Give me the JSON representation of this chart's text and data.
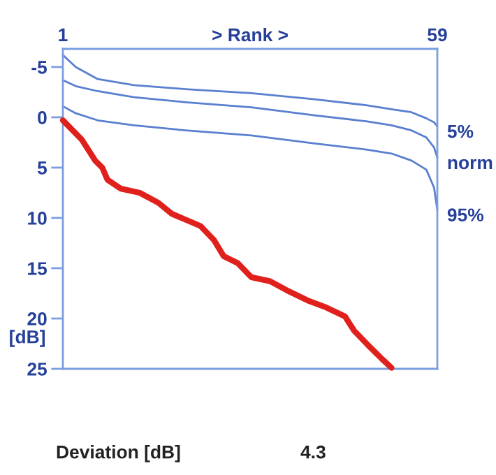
{
  "chart_data": {
    "type": "line",
    "xlabel": "> Rank >",
    "ylabel": "[dB]",
    "xlim": [
      1,
      59
    ],
    "xticks": [
      1,
      59
    ],
    "ylim": [
      25,
      -6.8
    ],
    "yticks": [
      -5,
      0,
      5,
      10,
      15,
      20,
      25
    ],
    "grid": false,
    "legend": false,
    "marker": "none",
    "line_style": "solid",
    "series": [
      {
        "name": "5%",
        "color": "#5a7fd0",
        "x": [
          1,
          3,
          6.4,
          12,
          20,
          30.2,
          40,
          48,
          51.9,
          55,
          57.3,
          58.5,
          59
        ],
        "values": [
          -6.2,
          -5.0,
          -3.8,
          -3.2,
          -2.8,
          -2.4,
          -1.8,
          -1.2,
          -0.8,
          -0.5,
          0.1,
          0.5,
          0.9
        ]
      },
      {
        "name": "norm",
        "color": "#5a7fd0",
        "x": [
          1,
          3,
          6.4,
          12,
          20,
          30.2,
          40,
          48,
          51.9,
          55,
          57.3,
          58.5,
          59
        ],
        "values": [
          -3.7,
          -3.1,
          -2.6,
          -2.0,
          -1.5,
          -1.0,
          -0.2,
          0.4,
          0.8,
          1.3,
          2.0,
          3.0,
          4.0
        ]
      },
      {
        "name": "95%",
        "color": "#5a7fd0",
        "x": [
          1,
          3,
          6.4,
          12,
          20,
          30.2,
          40,
          48,
          51.9,
          55,
          57.3,
          58.5,
          59
        ],
        "values": [
          -1.1,
          -0.4,
          0.3,
          0.8,
          1.3,
          1.8,
          2.6,
          3.2,
          3.6,
          4.3,
          5.2,
          7.0,
          9.2
        ]
      },
      {
        "color": "#e0201c",
        "x": [
          1,
          3.9,
          6.0,
          7.1,
          7.9,
          10.0,
          12.9,
          15.8,
          17.9,
          22.3,
          24.4,
          25.9,
          28.1,
          30.2,
          33.1,
          36.0,
          38.9,
          41.8,
          44.7,
          46.1,
          48.2,
          50.4,
          51.9
        ],
        "values": [
          0.3,
          2.2,
          4.3,
          5.0,
          6.2,
          7.1,
          7.5,
          8.5,
          9.6,
          10.8,
          12.2,
          13.8,
          14.5,
          15.9,
          16.3,
          17.3,
          18.2,
          18.9,
          19.8,
          21.2,
          22.6,
          24.0,
          24.9
        ]
      }
    ],
    "annotations": [
      "Deviation [dB]",
      "4.3"
    ]
  }
}
